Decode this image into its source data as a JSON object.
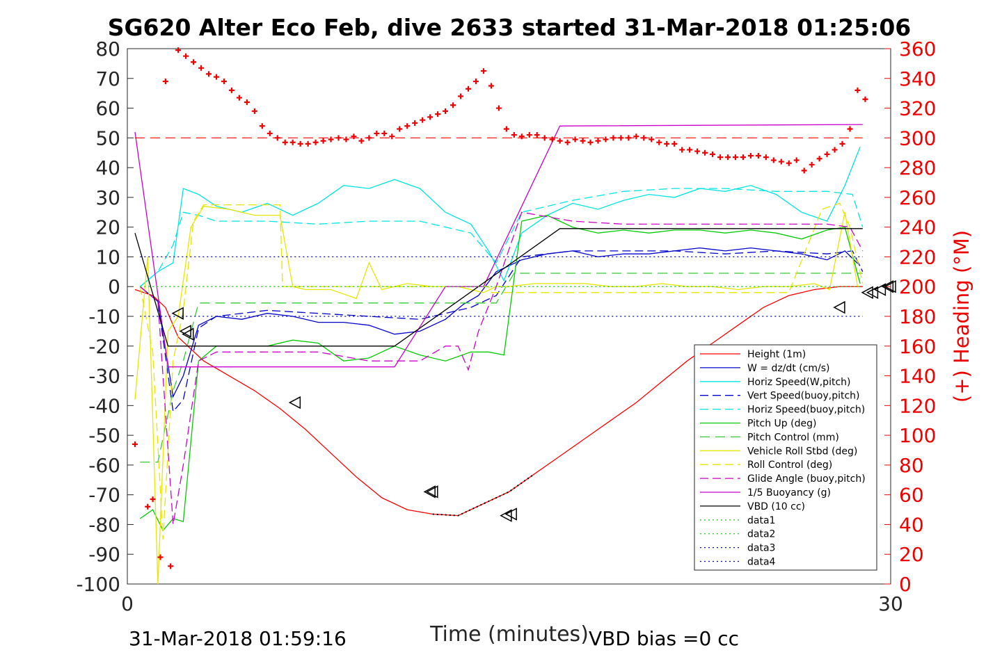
{
  "chart_data": {
    "type": "line",
    "title": "SG620 Alter Eco Feb, dive 2633 started 31-Mar-2018 01:25:06",
    "xlabel": "Time (minutes)",
    "ylabel_right": "(+) Heading (°M)",
    "xlim": [
      0,
      30
    ],
    "ylim": [
      -100,
      80
    ],
    "ylim_right": [
      0,
      360
    ],
    "x_ticks": [
      "0",
      "30"
    ],
    "y_ticks": [
      "80",
      "70",
      "60",
      "50",
      "40",
      "30",
      "20",
      "10",
      "0",
      "-10",
      "-20",
      "-30",
      "-40",
      "-50",
      "-60",
      "-70",
      "-80",
      "-90",
      "-100"
    ],
    "y_ticks_right": [
      "360",
      "340",
      "320",
      "300",
      "280",
      "260",
      "240",
      "220",
      "200",
      "180",
      "160",
      "140",
      "120",
      "100",
      "80",
      "60",
      "40",
      "20",
      "0"
    ],
    "footer_left": "31-Mar-2018 01:59:16",
    "footer_right": "VBD bias =0 cc",
    "legend_placement": "lower-right",
    "colors": {
      "red": "#ff0000",
      "blue": "#0000cc",
      "cyan": "#00e5e5",
      "green": "#00cc00",
      "yellow": "#e6e600",
      "magenta": "#cc00cc",
      "black": "#000000",
      "navy": "#0000a0",
      "heading": "#ee0000",
      "lightgreen": "#33cc33"
    },
    "series": [
      {
        "name": "Height (1m)",
        "color": "red",
        "dash": "",
        "x": [
          0.3,
          1.0,
          1.5,
          2.0,
          3.0,
          4.0,
          5.0,
          6.0,
          7.0,
          8.0,
          9.0,
          10.0,
          11.0,
          12.0,
          13.0,
          14.0,
          15.0,
          16.0,
          17.0,
          18.0,
          19.0,
          20.0,
          21.0,
          22.0,
          23.0,
          24.0,
          25.0,
          26.0,
          27.0,
          28.0,
          28.9
        ],
        "y": [
          -1,
          -3,
          -7,
          -17,
          -25,
          -30,
          -35,
          -41,
          -48,
          -56,
          -64,
          -71,
          -75,
          -76.5,
          -77,
          -73,
          -69,
          -63,
          -57,
          -51,
          -45,
          -39,
          -32,
          -25,
          -19,
          -13,
          -7,
          -3,
          -1,
          0,
          0
        ]
      },
      {
        "name": "W = dz/dt (cm/s)",
        "color": "blue",
        "dash": "",
        "x": [
          0.5,
          1.2,
          1.8,
          2.2,
          2.8,
          3.5,
          4.5,
          5.5,
          6.5,
          7.5,
          8.5,
          9.5,
          10.5,
          11.5,
          12.5,
          13.2,
          13.8,
          14.5,
          15.5,
          16.5,
          17.5,
          18.5,
          19.5,
          20.5,
          21.5,
          22.5,
          23.5,
          24.5,
          25.5,
          26.5,
          27.5,
          28.2,
          28.8
        ],
        "y": [
          0,
          -5,
          -37,
          -30,
          -13,
          -10,
          -11,
          -9,
          -10,
          -12,
          -12,
          -13,
          -16,
          -15,
          -11,
          -6,
          -3,
          5,
          9,
          11,
          12,
          10,
          11,
          11,
          12,
          13,
          12,
          13,
          12,
          11,
          9,
          12,
          7
        ]
      },
      {
        "name": "Horiz Speed(W,pitch)",
        "color": "cyan",
        "dash": "",
        "x": [
          0.5,
          1.2,
          1.8,
          2.2,
          2.8,
          3.5,
          4.5,
          5.5,
          6.5,
          7.5,
          8.5,
          9.5,
          10.5,
          11.5,
          12.5,
          13.5,
          14.2,
          14.8,
          15.5,
          16.5,
          17.5,
          18.5,
          19.5,
          20.5,
          21.5,
          22.5,
          23.5,
          24.5,
          25.5,
          26.5,
          27.5,
          28.2,
          28.8
        ],
        "y": [
          0,
          5,
          8,
          33,
          31,
          27,
          25,
          28,
          24,
          28,
          34,
          33,
          36,
          33,
          25,
          21,
          12,
          2,
          18,
          24,
          28,
          26,
          29,
          31,
          30,
          33,
          32,
          34,
          31,
          25,
          22,
          34,
          47
        ]
      },
      {
        "name": "Vert Speed(buoy,pitch)",
        "color": "blue",
        "dash": "12,6",
        "x": [
          0.5,
          1.2,
          1.8,
          2.2,
          2.8,
          3.5,
          5.5,
          7.5,
          9.5,
          11.5,
          13.5,
          14.5,
          15.5,
          17.5,
          19.5,
          21.5,
          23.5,
          25.5,
          27.5,
          28.5,
          28.9
        ],
        "y": [
          0,
          -5,
          -42,
          -38,
          -14,
          -10,
          -8,
          -9,
          -10,
          -11,
          -7,
          -3,
          10,
          12,
          12,
          12,
          11,
          12,
          11,
          12,
          5
        ]
      },
      {
        "name": "Horiz Speed(buoy,pitch)",
        "color": "cyan",
        "dash": "12,6",
        "x": [
          0.5,
          1.2,
          1.8,
          2.2,
          2.8,
          3.5,
          5.5,
          7.5,
          9.5,
          11.5,
          13.5,
          14.5,
          15.5,
          17.5,
          19.5,
          21.5,
          23.5,
          25.5,
          27.5,
          28.5,
          28.9
        ],
        "y": [
          0,
          5,
          14,
          25,
          24,
          22,
          22,
          21,
          22,
          22,
          18,
          8,
          25,
          29,
          32,
          33,
          33,
          32,
          32,
          31,
          20
        ]
      },
      {
        "name": "Pitch Up (deg)",
        "color": "green",
        "dash": "",
        "x": [
          0.5,
          1.0,
          1.4,
          1.8,
          2.2,
          2.8,
          3.5,
          4.5,
          5.5,
          6.5,
          7.5,
          8.5,
          9.5,
          10.5,
          11.5,
          12.5,
          13.5,
          14.2,
          14.8,
          15.5,
          16.5,
          17.5,
          18.5,
          19.5,
          20.5,
          21.5,
          22.5,
          23.5,
          24.5,
          25.5,
          26.5,
          27.5,
          28.2,
          28.8
        ],
        "y": [
          -78,
          -75,
          -82,
          -78,
          -79,
          -25,
          -20,
          -20,
          -20,
          -18,
          -19,
          -25,
          -24,
          -20,
          -23,
          -25,
          -22,
          -22,
          -23,
          22,
          24,
          20,
          18,
          19,
          18,
          19,
          19,
          18,
          19,
          18,
          16,
          19,
          20,
          1
        ]
      },
      {
        "name": "Pitch Control (mm)",
        "color": "lightgreen",
        "dash": "14,8",
        "x": [
          0.5,
          1.2,
          1.8,
          2.2,
          2.8,
          13.5,
          13.8,
          14.5,
          15.2,
          28.9
        ],
        "y": [
          -59,
          -59,
          -35,
          -25,
          -5.5,
          -5.5,
          -5.5,
          -5.5,
          4.5,
          4.5
        ]
      },
      {
        "name": "Vehicle Roll Stbd (deg)",
        "color": "yellow",
        "dash": "",
        "x": [
          0.3,
          0.8,
          1.2,
          1.6,
          2.0,
          2.5,
          3.0,
          4.0,
          5.0,
          6.0,
          6.5,
          7.0,
          8.0,
          9.0,
          9.5,
          10.0,
          11.0,
          12.0,
          13.0,
          14.0,
          14.5,
          15.0,
          16.0,
          17.0,
          18.0,
          19.0,
          20.0,
          21.0,
          22.0,
          23.0,
          24.0,
          25.0,
          26.0,
          27.0,
          27.6,
          28.2,
          28.7
        ],
        "y": [
          -38,
          10,
          -100,
          -15,
          -10,
          20,
          27,
          26,
          24,
          24,
          0,
          -1,
          -1,
          -4,
          8,
          -1,
          1,
          0,
          0,
          -2,
          0,
          0,
          1,
          1,
          1,
          0,
          0,
          1,
          0,
          0,
          -1,
          0,
          0,
          1,
          -1,
          25,
          0
        ]
      },
      {
        "name": "Roll Control (deg)",
        "color": "yellow",
        "dash": "12,6",
        "x": [
          0.5,
          1.0,
          1.4,
          1.8,
          2.2,
          2.6,
          3.0,
          6.0,
          6.1,
          14.2,
          14.3,
          23.5,
          26.0,
          27.3,
          28.0,
          28.4,
          28.9
        ],
        "y": [
          0,
          -22,
          -85,
          -25,
          -8,
          22,
          27.5,
          27.5,
          0,
          0,
          -2,
          -2,
          -2,
          26,
          28,
          20,
          1
        ]
      },
      {
        "name": "Glide Angle (buoy,pitch)",
        "color": "magenta",
        "dash": "12,6",
        "x": [
          0.5,
          1.2,
          1.8,
          2.2,
          2.8,
          3.5,
          5.5,
          7.5,
          9.5,
          11.5,
          12.5,
          13.0,
          13.4,
          13.8,
          14.5,
          15.5,
          17.5,
          19.5,
          21.5,
          23.5,
          25.5,
          27.5,
          28.4,
          28.9
        ],
        "y": [
          0,
          -5,
          -80,
          -60,
          -25,
          -22,
          -22,
          -22,
          -25,
          -25,
          -20,
          -20,
          -28,
          -15,
          0,
          25,
          22,
          21,
          21,
          21,
          21,
          21,
          20,
          12
        ]
      },
      {
        "name": "1/5 Buoyancy (g)",
        "color": "magenta",
        "dash": "",
        "x": [
          0.3,
          1.6,
          10.5,
          12.5,
          14.0,
          17.0,
          28.9
        ],
        "y": [
          52,
          -27,
          -27,
          0,
          0,
          54,
          54.5
        ]
      },
      {
        "name": "VBD (10 cc)",
        "color": "black",
        "dash": "",
        "x": [
          0.3,
          1.6,
          10.5,
          13.8,
          17.0,
          28.9
        ],
        "y": [
          18,
          -20,
          -20,
          0,
          19.5,
          19.5
        ]
      },
      {
        "name": "data1",
        "color": "lightgreen",
        "dash": "2,4",
        "x": [
          0.5,
          28.9
        ],
        "y": [
          0,
          0
        ]
      },
      {
        "name": "data2",
        "color": "lightgreen",
        "dash": "2,4",
        "x": [
          0.5,
          28.9
        ],
        "y": [
          0,
          0
        ]
      },
      {
        "name": "data3",
        "color": "navy",
        "dash": "2,4",
        "x": [
          0.5,
          28.9
        ],
        "y": [
          10,
          10
        ]
      },
      {
        "name": "data4",
        "color": "navy",
        "dash": "2,4",
        "x": [
          0.5,
          28.9
        ],
        "y": [
          -10,
          -10
        ]
      }
    ],
    "heading_reference": {
      "color": "red",
      "dash": "14,8",
      "value": 300,
      "x": [
        0.3,
        28.9
      ]
    },
    "heading_points": {
      "x": [
        0.3,
        0.8,
        1.0,
        1.3,
        1.5,
        1.7,
        2.0,
        2.3,
        2.6,
        2.9,
        3.2,
        3.5,
        3.8,
        4.1,
        4.4,
        4.7,
        5.0,
        5.3,
        5.6,
        5.9,
        6.2,
        6.5,
        6.8,
        7.1,
        7.4,
        7.7,
        8.0,
        8.3,
        8.6,
        8.9,
        9.2,
        9.5,
        9.8,
        10.1,
        10.4,
        10.7,
        11.0,
        11.3,
        11.6,
        11.9,
        12.2,
        12.5,
        12.8,
        13.1,
        13.4,
        13.7,
        14.0,
        14.3,
        14.6,
        14.9,
        15.2,
        15.5,
        15.8,
        16.1,
        16.4,
        16.7,
        17.0,
        17.3,
        17.6,
        17.9,
        18.2,
        18.5,
        18.8,
        19.1,
        19.4,
        19.7,
        20.0,
        20.3,
        20.6,
        20.9,
        21.2,
        21.5,
        21.8,
        22.1,
        22.4,
        22.7,
        23.0,
        23.3,
        23.6,
        23.9,
        24.2,
        24.5,
        24.8,
        25.1,
        25.4,
        25.7,
        26.0,
        26.3,
        26.6,
        26.9,
        27.2,
        27.5,
        27.8,
        28.1,
        28.4,
        28.7,
        29.0
      ],
      "y": [
        94,
        52,
        57,
        18,
        338,
        12,
        359,
        355,
        351,
        347,
        343,
        341,
        338,
        332,
        327,
        324,
        318,
        308,
        303,
        300,
        297,
        297,
        296,
        296,
        297,
        298,
        299,
        300,
        299,
        301,
        298,
        300,
        303,
        303,
        301,
        306,
        308,
        310,
        312,
        314,
        316,
        318,
        322,
        328,
        333,
        338,
        345,
        335,
        320,
        306,
        302,
        301,
        302,
        302,
        300,
        299,
        298,
        297,
        299,
        298,
        297,
        298,
        299,
        300,
        300,
        300,
        301,
        300,
        299,
        297,
        296,
        296,
        292,
        292,
        291,
        290,
        289,
        287,
        287,
        287,
        287,
        288,
        288,
        287,
        285,
        284,
        283,
        285,
        278,
        282,
        286,
        289,
        292,
        296,
        306,
        332,
        326
      ]
    },
    "markers": {
      "x": [
        2.0,
        2.3,
        2.4,
        6.6,
        11.9,
        12.0,
        14.9,
        15.1,
        28.0,
        29.1,
        29.3,
        29.6,
        29.9,
        30.0
      ],
      "y": [
        -9,
        -15,
        -16,
        -39,
        -69,
        -69,
        -77,
        -76.5,
        -7,
        -2,
        -2,
        -1,
        0,
        0
      ]
    }
  }
}
